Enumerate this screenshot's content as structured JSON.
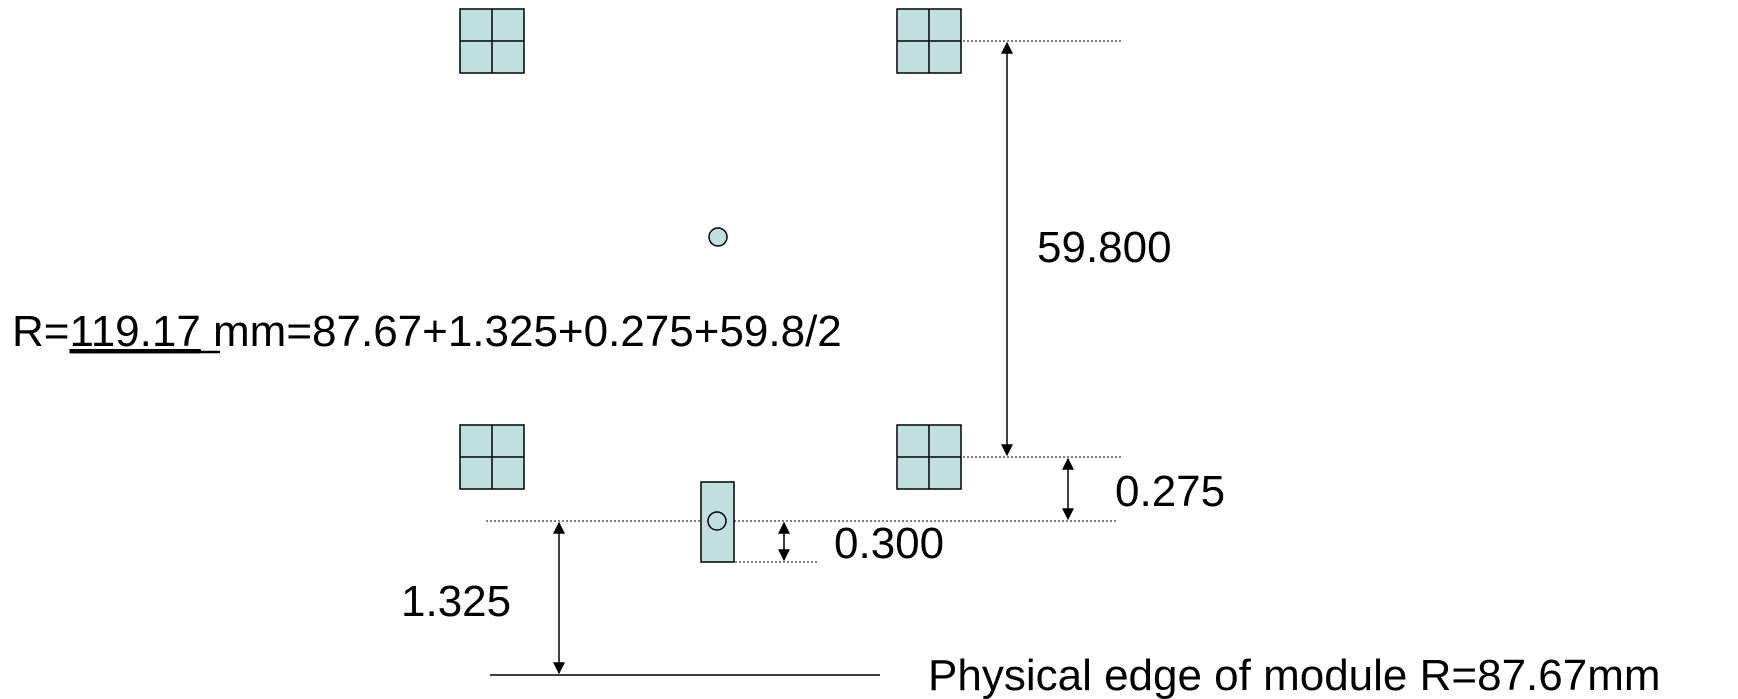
{
  "labels": {
    "dim_top": "59.800",
    "dim_mid": "0.275",
    "dim_small": "0.300",
    "dim_bottom": "1.325",
    "r_prefix": "R=",
    "r_value": "119.17",
    "r_suffix": " mm=87.67+1.325+0.275+59.8/2",
    "edge": "Physical edge of module R=87.67mm"
  },
  "colors": {
    "fill": "#c0e0e0",
    "stroke": "#000000"
  }
}
